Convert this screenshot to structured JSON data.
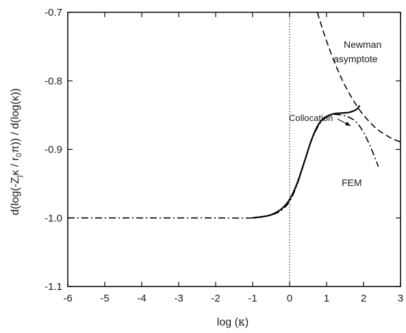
{
  "chart_data": {
    "type": "line",
    "xlabel": "log (κ)",
    "ylabel": "d(log(-Z_j κ / r_0 π)) / d(log(κ))",
    "xlim": [
      -6,
      3
    ],
    "ylim": [
      -1.1,
      -0.7
    ],
    "x_ticks": [
      -6,
      -5,
      -4,
      -3,
      -2,
      -1,
      0,
      1,
      2,
      3
    ],
    "x_tick_labels": [
      "-6",
      "-5",
      "-4",
      "-3",
      "-2",
      "-1",
      "0",
      "1",
      "2",
      "3"
    ],
    "y_ticks": [
      -1.1,
      -1.0,
      -0.9,
      -0.8,
      -0.7
    ],
    "y_tick_labels": [
      "-1.1",
      "-1.0",
      "-0.9",
      "-0.8",
      "-0.7"
    ],
    "grid": false,
    "reference_lines": [
      {
        "axis": "x",
        "value": 0,
        "style": "dotted"
      }
    ],
    "series": [
      {
        "name": "Collocation",
        "style": "solid",
        "color": "#000000",
        "x": [
          -1,
          -0.6,
          -0.4,
          -0.2,
          0,
          0.2,
          0.4,
          0.6,
          0.8,
          1.0,
          1.2,
          1.4,
          1.6,
          1.8,
          1.9
        ],
        "y": [
          -1.0,
          -0.997,
          -0.993,
          -0.986,
          -0.973,
          -0.95,
          -0.918,
          -0.885,
          -0.862,
          -0.852,
          -0.848,
          -0.847,
          -0.846,
          -0.842,
          -0.836
        ]
      },
      {
        "name": "FEM",
        "style": "dash-dot",
        "color": "#000000",
        "x": [
          -6,
          -5,
          -4,
          -3,
          -2,
          -1,
          -0.6,
          -0.4,
          -0.2,
          0,
          0.2,
          0.4,
          0.6,
          0.8,
          1.0,
          1.2,
          1.4,
          1.6,
          1.8,
          2.0,
          2.2,
          2.4
        ],
        "y": [
          -1.0,
          -1.0,
          -1.0,
          -1.0,
          -1.0,
          -1.0,
          -0.997,
          -0.994,
          -0.988,
          -0.976,
          -0.952,
          -0.919,
          -0.886,
          -0.864,
          -0.853,
          -0.849,
          -0.85,
          -0.853,
          -0.86,
          -0.875,
          -0.898,
          -0.925
        ]
      },
      {
        "name": "Newman asymptote",
        "style": "dashed",
        "color": "#000000",
        "x": [
          0.75,
          0.9,
          1.0,
          1.2,
          1.4,
          1.6,
          1.8,
          2.0,
          2.2,
          2.4,
          2.6,
          2.8,
          3.0
        ],
        "y": [
          -0.7,
          -0.726,
          -0.742,
          -0.771,
          -0.796,
          -0.817,
          -0.835,
          -0.85,
          -0.862,
          -0.872,
          -0.879,
          -0.885,
          -0.889
        ]
      }
    ],
    "annotations": {
      "newman_line1": "Newman",
      "newman_line2": "asymptote",
      "collocation": "Collocation",
      "fem": "FEM"
    }
  },
  "axes": {
    "xlabel_prefix": "log (",
    "xlabel_kappa": "κ",
    "xlabel_suffix": ")",
    "ylabel_prefix": "d(log(-Z",
    "ylabel_sub_j": "j",
    "ylabel_mid": "κ / r",
    "ylabel_sub_0": "0",
    "ylabel_suffix": "π)) / d(log(κ))"
  }
}
